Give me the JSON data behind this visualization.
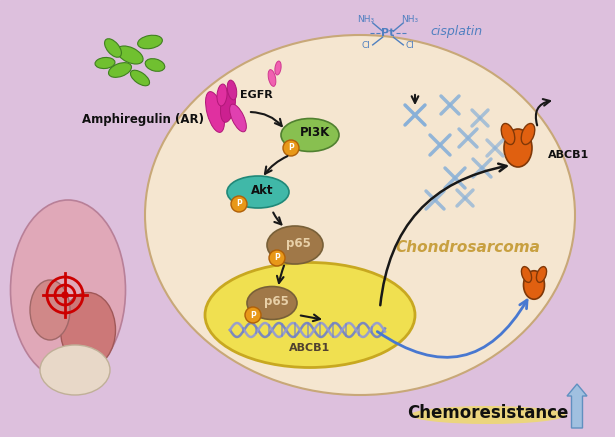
{
  "bg_color": "#ddc0dd",
  "cell_color": "#f5e6d0",
  "cell_edge_color": "#c8a878",
  "nucleus_color": "#f0e050",
  "nucleus_edge_color": "#c8a820",
  "chondrosarcoma_label": "Chondrosarcoma",
  "chondrosarcoma_color": "#c8a040",
  "chemoresistance_label": "Chemoresistance",
  "chemoresistance_color": "#101010",
  "cisplatin_color": "#5080c0",
  "label_EGFR": "EGFR",
  "label_PI3K": "PI3K",
  "label_Akt": "Akt",
  "label_p65": "p65",
  "label_ABCB1_nuc": "ABCB1",
  "label_ABCB1_mem": "ABCB1",
  "label_AR": "Amphiregulin (AR)",
  "label_cisplatin": "cisplatin",
  "P_bg": "#e89818",
  "P_fg": "#ffffff",
  "PI3K_color": "#88c050",
  "Akt_color": "#40b8a8",
  "p65_color": "#a07848",
  "arrow_color": "#181818",
  "blue_color": "#4878d0",
  "cross_color": "#88b0d8",
  "orange_color": "#e06010",
  "leaf_color": "#70c030",
  "egfr_color": "#e030a0",
  "figsize": [
    6.15,
    4.37
  ],
  "dpi": 100
}
